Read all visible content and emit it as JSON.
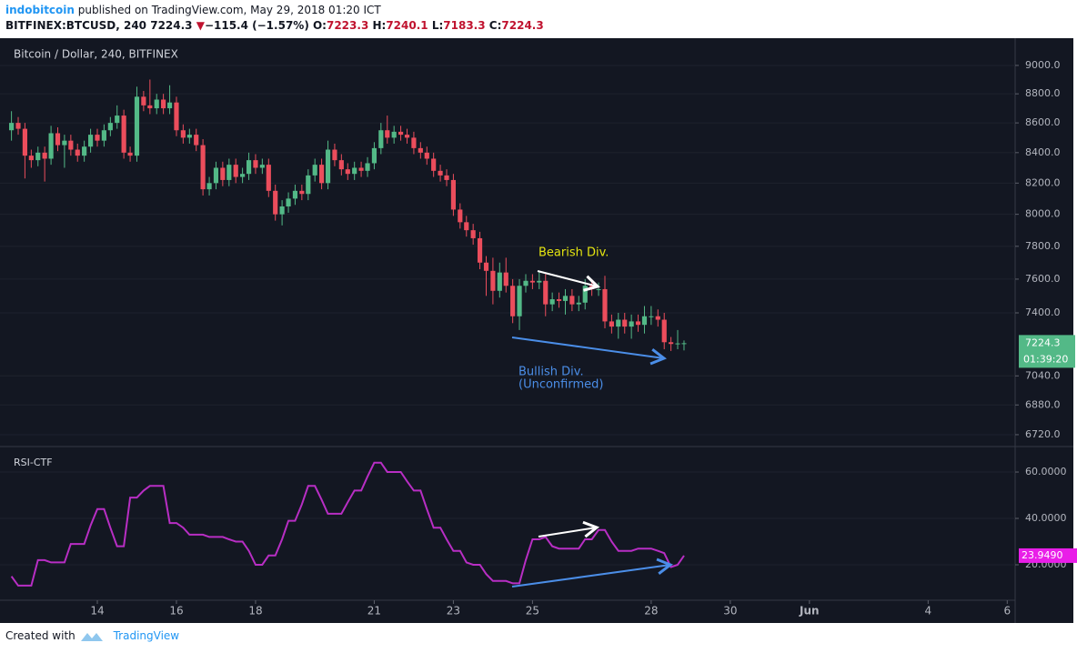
{
  "header": {
    "author": "indobitcoin",
    "published": " published on TradingView.com, May 29, 2018 01:20 ICT"
  },
  "ticker": {
    "symbol": "BITFINEX:BTCUSD, 240",
    "price": "7224.3",
    "arrow": "▼",
    "change": "−115.4 (−1.57%)",
    "open_label": "O:",
    "open": "7223.3",
    "high_label": "H:",
    "high": "7240.1",
    "low_label": "L:",
    "low": "7183.3",
    "close_label": "C:",
    "close": "7224.3"
  },
  "footer": {
    "created": "Created with",
    "brand": "TradingView"
  },
  "chart_data": [
    {
      "type": "candlestick",
      "title": "Bitcoin / Dollar, 240, BITFINEX",
      "log_scale": true,
      "grid": true,
      "up_color": "#53b987",
      "down_color": "#eb4d5c",
      "annotations": [
        "Bearish Div.",
        "Bullish Div.",
        "(Unconfirmed)"
      ],
      "countdown": "01:39:20",
      "xlim": [
        11.77,
        37.2
      ],
      "ylim": [
        6662,
        9196
      ],
      "yticks": [
        {
          "value": 9000,
          "label": "9000.0"
        },
        {
          "value": 8800,
          "label": "8800.0"
        },
        {
          "value": 8600,
          "label": "8600.0"
        },
        {
          "value": 8400,
          "label": "8400.0"
        },
        {
          "value": 8200,
          "label": "8200.0"
        },
        {
          "value": 8000,
          "label": "8000.0"
        },
        {
          "value": 7800,
          "label": "7800.0"
        },
        {
          "value": 7600,
          "label": "7600.0"
        },
        {
          "value": 7400,
          "label": "7400.0"
        },
        {
          "value": 7040,
          "label": "7040.0"
        },
        {
          "value": 6880,
          "label": "6880.0"
        },
        {
          "value": 6720,
          "label": "6720.0"
        }
      ],
      "x": [
        11.83,
        12,
        12.17,
        12.33,
        12.5,
        12.67,
        12.83,
        13,
        13.17,
        13.33,
        13.5,
        13.67,
        13.83,
        14,
        14.17,
        14.33,
        14.5,
        14.67,
        14.83,
        15,
        15.17,
        15.33,
        15.5,
        15.67,
        15.83,
        16,
        16.17,
        16.33,
        16.5,
        16.67,
        16.83,
        17,
        17.17,
        17.33,
        17.5,
        17.67,
        17.83,
        18,
        18.17,
        18.33,
        18.5,
        18.67,
        18.83,
        19,
        19.17,
        19.33,
        19.5,
        19.67,
        19.83,
        20,
        20.17,
        20.33,
        20.5,
        20.67,
        20.83,
        21,
        21.17,
        21.33,
        21.5,
        21.67,
        21.83,
        22,
        22.17,
        22.33,
        22.5,
        22.67,
        22.83,
        23,
        23.17,
        23.33,
        23.5,
        23.67,
        23.83,
        24,
        24.17,
        24.33,
        24.5,
        24.67,
        24.83,
        25,
        25.17,
        25.33,
        25.5,
        25.67,
        25.83,
        26,
        26.17,
        26.33,
        26.5,
        26.67,
        26.83,
        27,
        27.17,
        27.33,
        27.5,
        27.67,
        27.83,
        28,
        28.17,
        28.33,
        28.5,
        28.67,
        28.83
      ],
      "open": [
        8550,
        8600,
        8560,
        8380,
        8350,
        8400,
        8360,
        8530,
        8450,
        8480,
        8420,
        8380,
        8440,
        8520,
        8480,
        8550,
        8600,
        8650,
        8400,
        8380,
        8780,
        8720,
        8700,
        8760,
        8700,
        8740,
        8550,
        8500,
        8520,
        8450,
        8160,
        8200,
        8300,
        8220,
        8320,
        8240,
        8260,
        8350,
        8300,
        8320,
        8150,
        8000,
        8050,
        8100,
        8150,
        8130,
        8250,
        8320,
        8200,
        8420,
        8350,
        8290,
        8260,
        8300,
        8280,
        8330,
        8430,
        8550,
        8500,
        8540,
        8520,
        8500,
        8430,
        8400,
        8360,
        8280,
        8250,
        8220,
        8030,
        7950,
        7900,
        7850,
        7700,
        7650,
        7530,
        7640,
        7560,
        7380,
        7560,
        7590,
        7580,
        7590,
        7450,
        7480,
        7470,
        7500,
        7450,
        7460,
        7560,
        7540,
        7540,
        7350,
        7320,
        7360,
        7320,
        7350,
        7330,
        7380,
        7380,
        7360,
        7230,
        7220,
        7223.3
      ],
      "high": [
        8680,
        8640,
        8600,
        8420,
        8440,
        8440,
        8580,
        8570,
        8520,
        8520,
        8460,
        8480,
        8560,
        8560,
        8590,
        8640,
        8720,
        8690,
        8440,
        8850,
        8820,
        8900,
        8800,
        8800,
        8860,
        8780,
        8590,
        8560,
        8560,
        8490,
        8240,
        8340,
        8340,
        8360,
        8360,
        8300,
        8400,
        8390,
        8360,
        8360,
        8190,
        8090,
        8140,
        8190,
        8190,
        8290,
        8360,
        8360,
        8480,
        8460,
        8390,
        8330,
        8340,
        8340,
        8370,
        8470,
        8600,
        8650,
        8580,
        8580,
        8560,
        8540,
        8470,
        8440,
        8400,
        8320,
        8290,
        8260,
        8070,
        7990,
        7940,
        7890,
        7740,
        7730,
        7700,
        7730,
        7600,
        7600,
        7630,
        7630,
        7650,
        7630,
        7520,
        7520,
        7540,
        7540,
        7500,
        7600,
        7600,
        7580,
        7620,
        7390,
        7400,
        7400,
        7390,
        7390,
        7440,
        7440,
        7420,
        7400,
        7260,
        7300,
        7240.1
      ],
      "low": [
        8480,
        8520,
        8230,
        8300,
        8310,
        8210,
        8320,
        8410,
        8300,
        8380,
        8340,
        8340,
        8400,
        8440,
        8440,
        8510,
        8560,
        8360,
        8340,
        8340,
        8680,
        8660,
        8660,
        8660,
        8660,
        8510,
        8460,
        8460,
        8410,
        8120,
        8120,
        8160,
        8180,
        8180,
        8200,
        8200,
        8220,
        8260,
        8260,
        8110,
        7960,
        7930,
        8010,
        8060,
        8090,
        8090,
        8210,
        8160,
        8160,
        8310,
        8250,
        8220,
        8220,
        8240,
        8240,
        8290,
        8390,
        8460,
        8460,
        8480,
        8460,
        8390,
        8360,
        8320,
        8240,
        8210,
        8180,
        7990,
        7910,
        7860,
        7810,
        7660,
        7500,
        7450,
        7490,
        7520,
        7340,
        7300,
        7520,
        7540,
        7540,
        7380,
        7410,
        7430,
        7390,
        7410,
        7410,
        7420,
        7500,
        7500,
        7310,
        7280,
        7250,
        7280,
        7250,
        7290,
        7280,
        7330,
        7320,
        7190,
        7180,
        7190,
        7183.3
      ],
      "close": [
        8600,
        8560,
        8380,
        8350,
        8400,
        8360,
        8530,
        8450,
        8480,
        8420,
        8380,
        8440,
        8520,
        8480,
        8550,
        8600,
        8650,
        8400,
        8380,
        8780,
        8720,
        8700,
        8760,
        8700,
        8740,
        8550,
        8500,
        8520,
        8450,
        8160,
        8200,
        8300,
        8220,
        8320,
        8240,
        8260,
        8350,
        8300,
        8320,
        8150,
        8000,
        8050,
        8100,
        8150,
        8130,
        8250,
        8320,
        8200,
        8420,
        8350,
        8290,
        8260,
        8300,
        8280,
        8330,
        8430,
        8550,
        8500,
        8540,
        8520,
        8500,
        8430,
        8400,
        8360,
        8280,
        8250,
        8220,
        8030,
        7950,
        7900,
        7850,
        7700,
        7650,
        7530,
        7640,
        7560,
        7380,
        7560,
        7590,
        7580,
        7590,
        7450,
        7480,
        7470,
        7500,
        7450,
        7460,
        7560,
        7540,
        7540,
        7350,
        7320,
        7360,
        7320,
        7350,
        7330,
        7380,
        7380,
        7360,
        7230,
        7220,
        7223.3,
        7224.3
      ]
    },
    {
      "type": "line",
      "title": "RSI-CTF",
      "color": "#b82ec4",
      "label_color": "#e91ee8",
      "grid": true,
      "xlim": [
        11.77,
        37.2
      ],
      "ylim": [
        4.7,
        70.6
      ],
      "yticks": [
        {
          "value": 60,
          "label": "60.0000"
        },
        {
          "value": 40,
          "label": "40.0000"
        },
        {
          "value": 20,
          "label": "20.0000"
        }
      ],
      "xticks": [
        14,
        16,
        18,
        21,
        23,
        25,
        28,
        30,
        {
          "value": 32,
          "label": "Jun"
        },
        {
          "value": 35,
          "label": "4"
        },
        {
          "value": 37,
          "label": "6"
        }
      ],
      "last_value_label": "23.9490",
      "values": [
        15,
        11,
        11,
        11,
        22,
        22,
        21,
        21,
        21,
        29,
        29,
        29,
        37,
        44,
        44,
        36,
        28,
        28,
        49,
        49,
        52,
        54,
        54,
        54,
        38,
        38,
        36,
        33,
        33,
        33,
        32,
        32,
        32,
        31,
        30,
        30,
        26,
        20,
        20,
        24,
        24,
        31,
        39,
        39,
        46,
        54,
        54,
        48,
        42,
        42,
        42,
        47,
        52,
        52,
        58,
        64,
        64,
        60,
        60,
        60,
        56,
        52,
        52,
        44,
        36,
        36,
        31,
        26,
        26,
        21,
        20,
        20,
        16,
        13,
        13,
        13,
        12,
        12,
        22,
        31,
        31,
        32,
        28,
        27,
        27,
        27,
        27,
        31,
        31,
        35,
        35,
        30,
        26,
        26,
        26,
        27,
        27,
        27,
        26,
        25,
        19,
        20,
        23.949
      ]
    }
  ]
}
